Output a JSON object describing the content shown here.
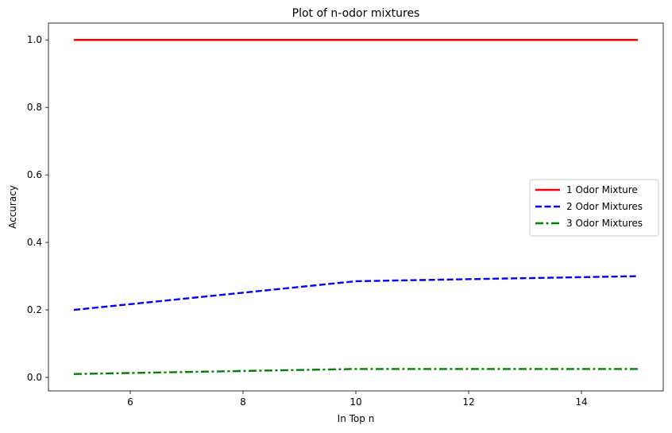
{
  "chart_data": {
    "type": "line",
    "title": "Plot of n-odor mixtures",
    "xlabel": "In Top n",
    "ylabel": "Accuracy",
    "xlim": [
      4.55,
      15.45
    ],
    "ylim": [
      -0.04,
      1.05
    ],
    "xticks": [
      6,
      8,
      10,
      12,
      14
    ],
    "yticks": [
      0.0,
      0.2,
      0.4,
      0.6,
      0.8,
      1.0
    ],
    "grid": false,
    "legend": "center-right",
    "x": [
      5,
      10,
      15
    ],
    "series": [
      {
        "name": "1 Odor Mixture",
        "values": [
          1.0,
          1.0,
          1.0
        ],
        "color": "#ff0000",
        "dash": "solid"
      },
      {
        "name": "2 Odor Mixtures",
        "values": [
          0.2,
          0.285,
          0.3
        ],
        "color": "#0000ff",
        "dash": "dashed"
      },
      {
        "name": "3 Odor Mixtures",
        "values": [
          0.01,
          0.025,
          0.025
        ],
        "color": "#008000",
        "dash": "dashdot"
      }
    ]
  }
}
